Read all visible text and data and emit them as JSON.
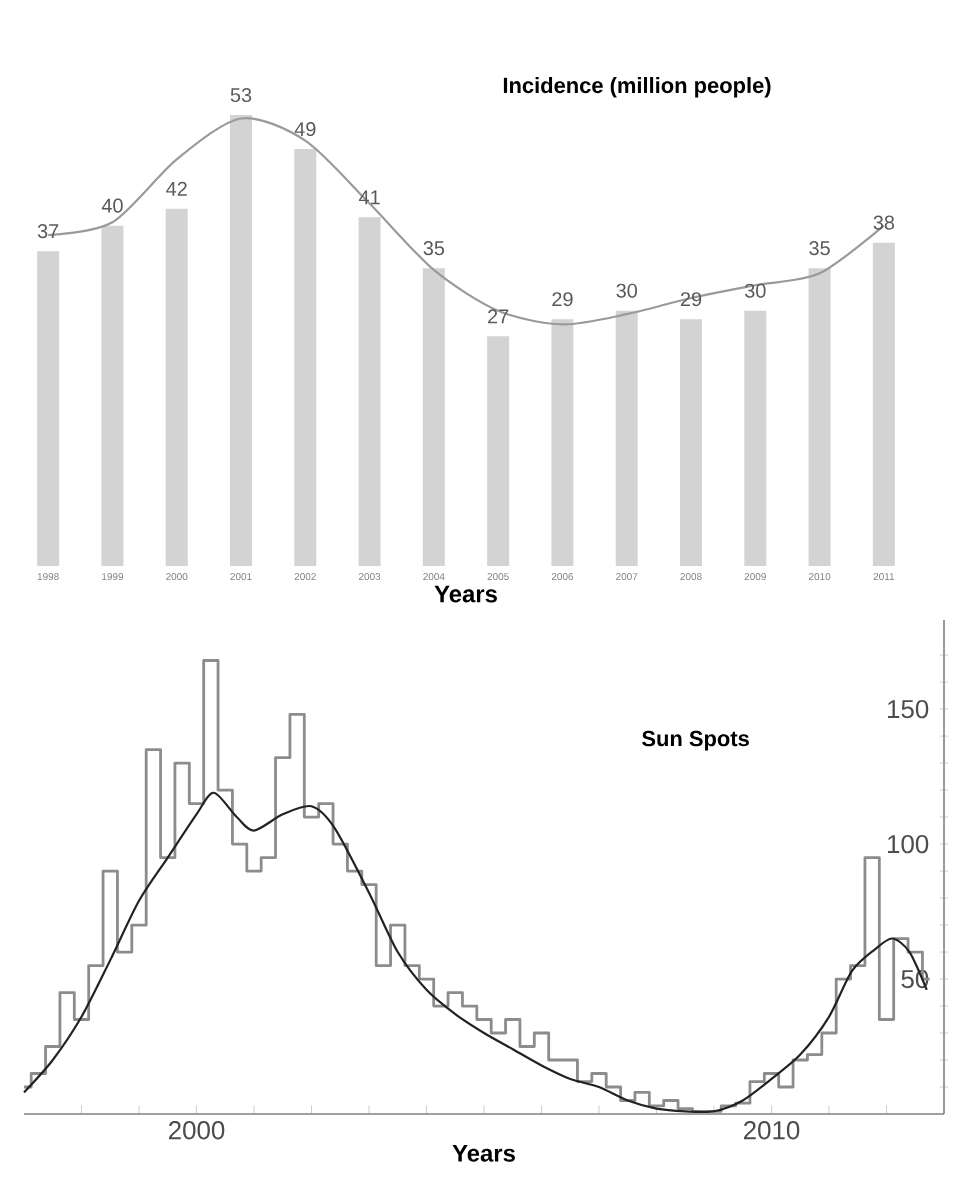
{
  "chart_data": [
    {
      "type": "bar",
      "title": "Incidence (million people)",
      "xlabel": "Years",
      "tick_labels": "x",
      "categories": [
        "1998",
        "1999",
        "2000",
        "2001",
        "2002",
        "2003",
        "2004",
        "2005",
        "2006",
        "2007",
        "2008",
        "2009",
        "2010",
        "2011"
      ],
      "series": [
        {
          "color": "#d3d3d3",
          "values": [
            37,
            40,
            42,
            53,
            49,
            41,
            35,
            27,
            29,
            30,
            29,
            30,
            35,
            38
          ],
          "value_labels": [
            "37",
            "40",
            "42",
            "53",
            "49",
            "41",
            "35",
            "27",
            "29",
            "30",
            "29",
            "30",
            "35",
            "38"
          ]
        },
        {
          "type": "line",
          "color": "#9a9a9a",
          "values": [
            38.9,
            40.4,
            47.8,
            52.6,
            50,
            42.6,
            34.8,
            30,
            28.4,
            29.6,
            31.5,
            33,
            34.4,
            40
          ]
        }
      ]
    },
    {
      "type": "line",
      "title": "Sun Spots",
      "xlabel": "Years",
      "xlim": [
        1997,
        2013
      ],
      "xticks": [
        {
          "value": 1998,
          "label": null
        },
        {
          "value": 1999,
          "label": null
        },
        2000,
        {
          "value": 2001,
          "label": null
        },
        {
          "value": 2002,
          "label": null
        },
        {
          "value": 2003,
          "label": null
        },
        {
          "value": 2004,
          "label": null
        },
        {
          "value": 2005,
          "label": null
        },
        {
          "value": 2006,
          "label": null
        },
        {
          "value": 2007,
          "label": null
        },
        {
          "value": 2008,
          "label": null
        },
        {
          "value": 2009,
          "label": null
        },
        2010,
        {
          "value": 2011,
          "label": null
        },
        {
          "value": 2012,
          "label": null
        }
      ],
      "ylim": [
        0,
        183
      ],
      "yticks": [
        {
          "value": 10,
          "label": null
        },
        {
          "value": 20,
          "label": null
        },
        {
          "value": 30,
          "label": null
        },
        {
          "value": 40,
          "label": null
        },
        50,
        {
          "value": 60,
          "label": null
        },
        {
          "value": 70,
          "label": null
        },
        {
          "value": 80,
          "label": null
        },
        {
          "value": 90,
          "label": null
        },
        100,
        {
          "value": 110,
          "label": null
        },
        {
          "value": 120,
          "label": null
        },
        {
          "value": 130,
          "label": null
        },
        {
          "value": 140,
          "label": null
        },
        150,
        {
          "value": 160,
          "label": null
        },
        {
          "value": 170,
          "label": null
        }
      ],
      "series": [
        {
          "type": "step",
          "color": "#8c8c8c",
          "x": [
            1997,
            1997.25,
            1997.5,
            1997.75,
            1998,
            1998.25,
            1998.5,
            1998.75,
            1999,
            1999.25,
            1999.5,
            1999.75,
            2000,
            2000.25,
            2000.5,
            2000.75,
            2001,
            2001.25,
            2001.5,
            2001.75,
            2002,
            2002.25,
            2002.5,
            2002.75,
            2003,
            2003.25,
            2003.5,
            2003.75,
            2004,
            2004.25,
            2004.5,
            2004.75,
            2005,
            2005.25,
            2005.5,
            2005.75,
            2006,
            2006.25,
            2006.5,
            2006.75,
            2007,
            2007.25,
            2007.5,
            2007.75,
            2008,
            2008.25,
            2008.5,
            2008.75,
            2009,
            2009.25,
            2009.5,
            2009.75,
            2010,
            2010.25,
            2010.5,
            2010.75,
            2011,
            2011.25,
            2011.5,
            2011.75,
            2012,
            2012.25,
            2012.5,
            2012.75
          ],
          "values": [
            10,
            15,
            25,
            45,
            35,
            55,
            90,
            60,
            70,
            135,
            95,
            130,
            115,
            168,
            120,
            100,
            90,
            95,
            132,
            148,
            110,
            115,
            100,
            90,
            85,
            55,
            70,
            55,
            50,
            40,
            45,
            40,
            35,
            30,
            35,
            25,
            30,
            20,
            20,
            12,
            15,
            10,
            5,
            8,
            3,
            5,
            2,
            1,
            1,
            3,
            4,
            12,
            15,
            10,
            20,
            22,
            30,
            50,
            55,
            95,
            35,
            65,
            60,
            50
          ]
        },
        {
          "color": "#222222",
          "x": [
            1997,
            1997.5,
            1998,
            1998.5,
            1999,
            1999.5,
            2000,
            2000.3,
            2000.7,
            2001,
            2001.5,
            2002,
            2002.4,
            2003,
            2003.5,
            2004,
            2004.5,
            2005,
            2005.5,
            2006,
            2006.5,
            2007,
            2007.5,
            2008,
            2008.5,
            2009,
            2009.5,
            2010,
            2010.5,
            2011,
            2011.4,
            2011.8,
            2012.1,
            2012.4,
            2012.7
          ],
          "values": [
            8,
            20,
            36,
            57,
            79,
            95,
            111,
            119,
            110,
            105,
            111,
            114,
            106,
            82,
            60,
            46,
            37,
            30,
            24,
            18,
            13,
            10,
            5,
            2,
            1,
            1,
            5,
            13,
            22,
            36,
            53,
            61,
            65,
            60,
            46
          ]
        }
      ]
    }
  ]
}
